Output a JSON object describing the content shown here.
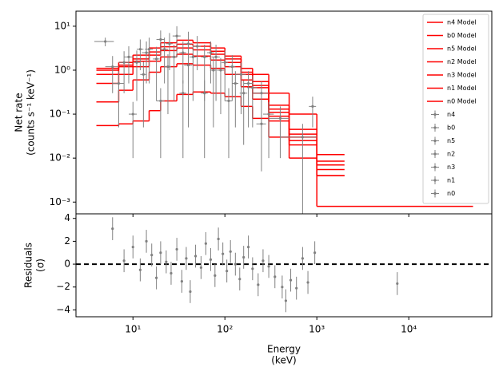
{
  "chart_data": [
    {
      "type": "spectrum",
      "ylabel": [
        "Net rate",
        "(counts s⁻¹ keV⁻¹)"
      ],
      "xscale": "log",
      "yscale": "log",
      "xlim": [
        2.4,
        80000
      ],
      "ylim": [
        0.00054,
        22
      ],
      "xticks": [
        10,
        100,
        1000,
        10000
      ],
      "yticks": [
        {
          "value": 10,
          "label": "10¹"
        },
        {
          "value": 1,
          "label": "10⁰"
        },
        {
          "value": 0.1,
          "label": "10⁻¹"
        },
        {
          "value": 0.01,
          "label": "10⁻²"
        },
        {
          "value": 0.001,
          "label": "10⁻³"
        }
      ],
      "legend": "upper right",
      "series": [
        {
          "name": "n4 Model",
          "style": "step",
          "color": "#ff0000",
          "edges": [
            4,
            7,
            10,
            15,
            20,
            30,
            45,
            70,
            100,
            150,
            200,
            300,
            500,
            1000,
            2000
          ],
          "values": [
            1.1,
            1.5,
            2.2,
            3.2,
            4.2,
            4.8,
            4.2,
            3.2,
            2.1,
            1.1,
            0.55,
            0.16,
            0.045,
            0.012
          ]
        },
        {
          "name": "b0 Model",
          "style": "step",
          "color": "#ff0000",
          "edges": [
            200,
            300,
            500,
            1000,
            50000
          ],
          "values": [
            0.8,
            0.3,
            0.1,
            0.0008
          ]
        },
        {
          "name": "n5 Model",
          "style": "step",
          "color": "#ff0000",
          "edges": [
            4,
            7,
            10,
            15,
            20,
            30,
            45,
            70,
            100,
            150,
            200,
            300,
            500,
            1000,
            2000
          ],
          "values": [
            0.8,
            1.2,
            1.8,
            2.6,
            3.4,
            3.9,
            3.5,
            2.7,
            1.8,
            0.9,
            0.45,
            0.13,
            0.035,
            0.0085
          ]
        },
        {
          "name": "n2 Model",
          "style": "step",
          "color": "#ff0000",
          "edges": [
            4,
            7,
            10,
            15,
            20,
            30,
            45,
            70,
            100,
            150,
            200,
            300,
            500,
            1000,
            2000
          ],
          "values": [
            1.0,
            1.3,
            1.6,
            2.2,
            2.8,
            3.2,
            2.9,
            2.3,
            1.5,
            0.8,
            0.4,
            0.11,
            0.03,
            0.007
          ]
        },
        {
          "name": "n3 Model",
          "style": "step",
          "color": "#ff0000",
          "edges": [
            4,
            7,
            10,
            15,
            20,
            30,
            45,
            70,
            100,
            150,
            200,
            300,
            500,
            1000,
            2000
          ],
          "values": [
            0.5,
            0.8,
            1.2,
            1.6,
            2.0,
            2.3,
            2.1,
            1.7,
            1.2,
            0.6,
            0.3,
            0.09,
            0.025,
            0.0055
          ]
        },
        {
          "name": "n1 Model",
          "style": "step",
          "color": "#ff0000",
          "edges": [
            4,
            7,
            10,
            15,
            20,
            30,
            45,
            70,
            100,
            150,
            200,
            300,
            500,
            1000,
            2000
          ],
          "values": [
            0.19,
            0.35,
            0.6,
            0.9,
            1.2,
            1.4,
            1.3,
            1.1,
            0.8,
            0.42,
            0.22,
            0.07,
            0.02,
            0.004
          ]
        },
        {
          "name": "n0 Model",
          "style": "step",
          "color": "#ff0000",
          "edges": [
            4,
            7,
            10,
            15,
            20,
            30,
            45,
            70,
            100,
            150,
            200,
            300,
            500,
            1000,
            2000
          ],
          "values": [
            0.055,
            0.06,
            0.07,
            0.12,
            0.2,
            0.28,
            0.32,
            0.3,
            0.25,
            0.15,
            0.08,
            0.03,
            0.01,
            0.004
          ]
        },
        {
          "name": "n4",
          "style": "errorbar",
          "color": "#808080",
          "x": [
            12,
            20,
            30,
            50,
            80,
            150
          ],
          "values": [
            3,
            5,
            6,
            3.5,
            2,
            0.8
          ],
          "yerr": [
            2,
            3,
            4,
            2.5,
            1.8,
            0.7
          ],
          "xerr": [
            1,
            2,
            3,
            5,
            8,
            20
          ]
        },
        {
          "name": "b0",
          "style": "errorbar",
          "color": "#808080",
          "x": [
            250,
            400,
            700
          ],
          "values": [
            0.3,
            0.08,
            0.03
          ],
          "yerr": [
            0.25,
            0.07,
            0.03
          ],
          "xerr": [
            50,
            100,
            300
          ]
        },
        {
          "name": "n5",
          "style": "errorbar",
          "color": "#808080",
          "x": [
            9,
            15,
            25,
            40,
            70,
            120,
            200
          ],
          "values": [
            2,
            3,
            4,
            4,
            2.5,
            1.2,
            0.4
          ],
          "yerr": [
            1.5,
            2.5,
            3,
            3.5,
            2,
            1,
            0.35
          ],
          "xerr": [
            1,
            1.5,
            2,
            4,
            6,
            10,
            25
          ]
        },
        {
          "name": "n2",
          "style": "errorbar",
          "color": "#808080",
          "x": [
            5,
            8,
            14,
            22,
            35,
            60,
            100,
            180
          ],
          "values": [
            4.5,
            1.5,
            2.5,
            3,
            2.5,
            2,
            1.5,
            0.5
          ],
          "yerr": [
            1,
            1.2,
            2,
            2.5,
            2,
            1.8,
            1.3,
            0.45
          ],
          "xerr": [
            1.2,
            1,
            1.5,
            2,
            3,
            5,
            8,
            20
          ]
        },
        {
          "name": "n3",
          "style": "errorbar",
          "color": "#808080",
          "x": [
            6,
            11,
            18,
            28,
            45,
            90,
            160
          ],
          "values": [
            1.2,
            1.5,
            1.8,
            2,
            2,
            1,
            0.3
          ],
          "yerr": [
            0.9,
            1.3,
            1.6,
            1.8,
            1.8,
            0.9,
            0.28
          ],
          "xerr": [
            1,
            1,
            1.5,
            2,
            4,
            8,
            15
          ]
        },
        {
          "name": "n1",
          "style": "errorbar",
          "color": "#808080",
          "x": [
            7,
            13,
            24,
            40,
            75,
            130,
            300
          ],
          "values": [
            0.5,
            0.8,
            1.2,
            1.3,
            1,
            0.5,
            0.1
          ],
          "yerr": [
            0.45,
            0.75,
            1.1,
            1.25,
            0.95,
            0.45,
            0.09
          ],
          "xerr": [
            1,
            1,
            2,
            4,
            6,
            10,
            40
          ]
        },
        {
          "name": "n0",
          "style": "errorbar",
          "color": "#808080",
          "x": [
            10,
            20,
            35,
            60,
            110,
            250,
            900
          ],
          "values": [
            0.1,
            0.2,
            0.3,
            0.3,
            0.2,
            0.06,
            0.15
          ],
          "yerr": [
            0.09,
            0.19,
            0.29,
            0.29,
            0.19,
            0.055,
            0.1
          ],
          "xerr": [
            1,
            2,
            3,
            5,
            10,
            30,
            80
          ]
        }
      ]
    },
    {
      "type": "residuals",
      "xlabel": [
        "Energy",
        "(keV)"
      ],
      "ylabel": [
        "Residuals",
        "(σ)"
      ],
      "xscale": "log",
      "yscale": "linear",
      "xlim": [
        2.4,
        80000
      ],
      "ylim": [
        -4.6,
        4.4
      ],
      "xticks": [
        {
          "value": 10,
          "label": "10¹"
        },
        {
          "value": 100,
          "label": "10²"
        },
        {
          "value": 1000,
          "label": "10³"
        },
        {
          "value": 10000,
          "label": "10⁴"
        }
      ],
      "yticks": [
        4,
        2,
        0,
        {
          "value": -2,
          "label": "−2"
        },
        {
          "value": -4,
          "label": "−4"
        }
      ],
      "hline": 0,
      "series": [
        {
          "style": "errorbar",
          "color": "#808080",
          "x": [
            6,
            8,
            10,
            12,
            14,
            16,
            18,
            20,
            23,
            26,
            30,
            34,
            38,
            42,
            48,
            55,
            62,
            70,
            78,
            85,
            95,
            105,
            115,
            130,
            145,
            160,
            180,
            200,
            230,
            260,
            300,
            350,
            420,
            460,
            520,
            600,
            700,
            800,
            950,
            7500
          ],
          "values": [
            3.1,
            0.3,
            1.5,
            -0.5,
            2.0,
            0.8,
            -1.2,
            1.0,
            0.2,
            -0.8,
            1.3,
            -1.5,
            0.5,
            -2.4,
            0.7,
            -0.3,
            1.8,
            0.4,
            -1.0,
            2.2,
            0.9,
            -0.6,
            1.1,
            0.0,
            -1.3,
            0.6,
            1.5,
            -0.4,
            -1.8,
            0.3,
            -0.2,
            -1.1,
            -2.0,
            -3.2,
            -1.4,
            -2.1,
            0.5,
            -1.6,
            1.0,
            -1.7
          ],
          "yerr": [
            1,
            1,
            1,
            1,
            1,
            1,
            1,
            1,
            1,
            1,
            1,
            1,
            1,
            1,
            1,
            1,
            1,
            1,
            1,
            1,
            1,
            1,
            1,
            1,
            1,
            1,
            1,
            1,
            1,
            1,
            1,
            1,
            1,
            1,
            1,
            1,
            1,
            1,
            1,
            1
          ]
        }
      ]
    }
  ]
}
